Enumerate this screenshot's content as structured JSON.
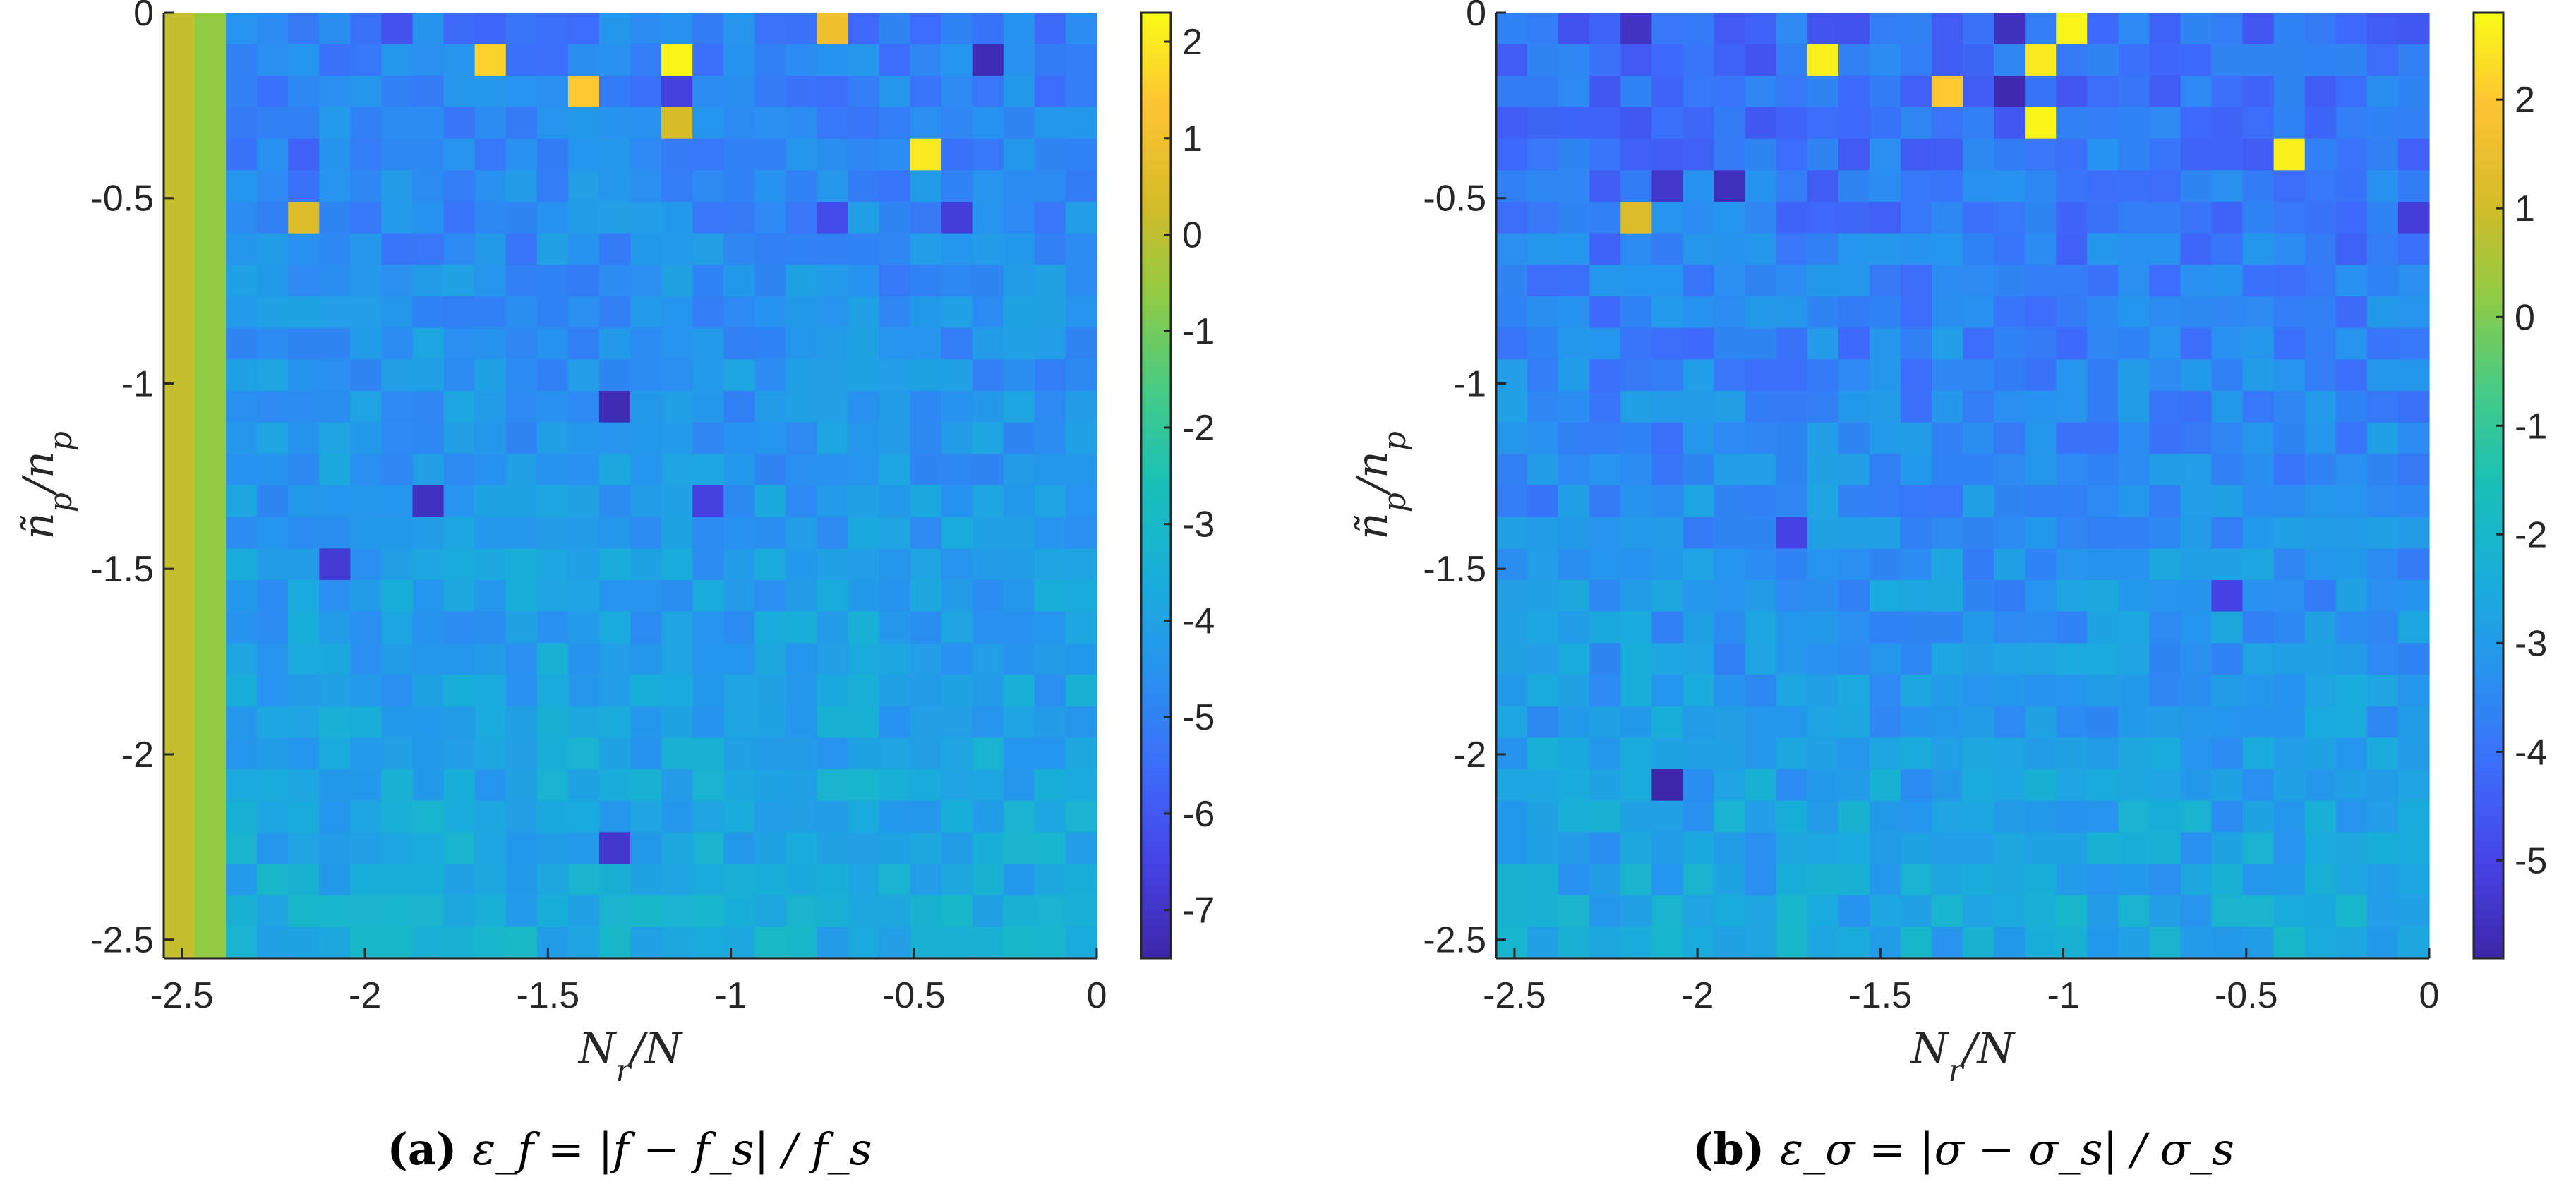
{
  "chart_data": [
    {
      "type": "heatmap",
      "caption_letter": "(a)",
      "caption_formula": "ε_f = |f − f_s| / f_s",
      "xlabel": "N_r/N",
      "ylabel": "ñ_p/n_p",
      "xlim": [
        -2.55,
        0
      ],
      "ylim": [
        -2.55,
        0
      ],
      "xticks": [
        -2.5,
        -2,
        -1.5,
        -1,
        -0.5,
        0
      ],
      "yticks": [
        0,
        -0.5,
        -1,
        -1.5,
        -2,
        -2.5
      ],
      "xtick_labels": [
        "-2.5",
        "-2",
        "-1.5",
        "-1",
        "-0.5",
        "0"
      ],
      "ytick_labels": [
        "0",
        "-0.5",
        "-1",
        "-1.5",
        "-2",
        "-2.5"
      ],
      "grid_size": [
        30,
        30
      ],
      "colormap": "parula",
      "color_range": [
        -7.5,
        2.3
      ],
      "colorbar_ticks": [
        2,
        1,
        0,
        -1,
        -2,
        -3,
        -4,
        -5,
        -6,
        -7
      ],
      "colorbar_tick_labels": [
        "2",
        "1",
        "0",
        "-1",
        "-2",
        "-3",
        "-4",
        "-5",
        "-6",
        "-7"
      ],
      "background_value": -4.6,
      "gradient": {
        "top": -5.0,
        "bottom": -3.6
      },
      "columns": [
        {
          "col": 0,
          "value": 0.1
        },
        {
          "col": 1,
          "value": -0.6
        }
      ],
      "highlights": [
        {
          "row": 0,
          "col": 21,
          "value": 1.0
        },
        {
          "row": 0,
          "col": 7,
          "value": -6.2
        },
        {
          "row": 1,
          "col": 10,
          "value": 1.6
        },
        {
          "row": 1,
          "col": 16,
          "value": 2.2
        },
        {
          "row": 1,
          "col": 26,
          "value": -7.3
        },
        {
          "row": 2,
          "col": 13,
          "value": 1.4
        },
        {
          "row": 2,
          "col": 16,
          "value": -6.6
        },
        {
          "row": 3,
          "col": 16,
          "value": 0.4
        },
        {
          "row": 4,
          "col": 4,
          "value": -5.8
        },
        {
          "row": 4,
          "col": 24,
          "value": 2.0
        },
        {
          "row": 6,
          "col": 21,
          "value": -6.3
        },
        {
          "row": 6,
          "col": 4,
          "value": 0.5
        },
        {
          "row": 6,
          "col": 25,
          "value": -6.7
        },
        {
          "row": 12,
          "col": 14,
          "value": -7.3
        },
        {
          "row": 15,
          "col": 8,
          "value": -7.1
        },
        {
          "row": 15,
          "col": 17,
          "value": -6.6
        },
        {
          "row": 17,
          "col": 5,
          "value": -6.8
        },
        {
          "row": 26,
          "col": 14,
          "value": -6.9
        }
      ]
    },
    {
      "type": "heatmap",
      "caption_letter": "(b)",
      "caption_formula": "ε_σ = |σ − σ_s| / σ_s",
      "xlabel": "N_r/N",
      "ylabel": "ñ_p/n_p",
      "xlim": [
        -2.55,
        0
      ],
      "ylim": [
        -2.55,
        0
      ],
      "xticks": [
        -2.5,
        -2,
        -1.5,
        -1,
        -0.5,
        0
      ],
      "yticks": [
        0,
        -0.5,
        -1,
        -1.5,
        -2,
        -2.5
      ],
      "xtick_labels": [
        "-2.5",
        "-2",
        "-1.5",
        "-1",
        "-0.5",
        "0"
      ],
      "ytick_labels": [
        "0",
        "-0.5",
        "-1",
        "-1.5",
        "-2",
        "-2.5"
      ],
      "grid_size": [
        30,
        30
      ],
      "colormap": "parula",
      "color_range": [
        -5.9,
        2.8
      ],
      "colorbar_ticks": [
        2,
        1,
        0,
        -1,
        -2,
        -3,
        -4,
        -5
      ],
      "colorbar_tick_labels": [
        "2",
        "1",
        "0",
        "-1",
        "-2",
        "-3",
        "-4",
        "-5"
      ],
      "background_value": -3.5,
      "gradient": {
        "top": -4.1,
        "bottom": -2.6
      },
      "columns": [],
      "highlights": [
        {
          "row": 0,
          "col": 18,
          "value": 2.7
        },
        {
          "row": 0,
          "col": 4,
          "value": -5.5
        },
        {
          "row": 0,
          "col": 16,
          "value": -5.6
        },
        {
          "row": 1,
          "col": 10,
          "value": 2.6
        },
        {
          "row": 1,
          "col": 17,
          "value": 2.5
        },
        {
          "row": 2,
          "col": 14,
          "value": 2.0
        },
        {
          "row": 2,
          "col": 16,
          "value": -5.8
        },
        {
          "row": 3,
          "col": 17,
          "value": 2.7
        },
        {
          "row": 4,
          "col": 25,
          "value": 2.6
        },
        {
          "row": 5,
          "col": 5,
          "value": -5.4
        },
        {
          "row": 5,
          "col": 7,
          "value": -5.6
        },
        {
          "row": 6,
          "col": 4,
          "value": 1.2
        },
        {
          "row": 6,
          "col": 29,
          "value": -5.2
        },
        {
          "row": 16,
          "col": 9,
          "value": -5.0
        },
        {
          "row": 18,
          "col": 23,
          "value": -5.0
        },
        {
          "row": 24,
          "col": 5,
          "value": -5.9
        },
        {
          "row": 29,
          "col": 0,
          "value": -2.1
        }
      ]
    }
  ]
}
